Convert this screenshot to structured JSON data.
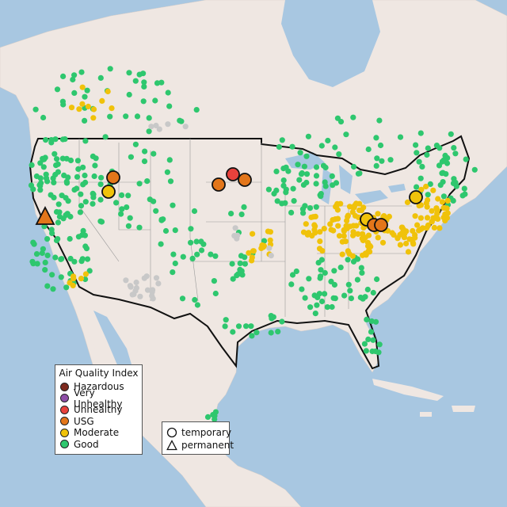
{
  "legend": {
    "title": "Air Quality Index",
    "items": [
      {
        "label": "Hazardous",
        "color": "#7e2a1e"
      },
      {
        "label": "Very Unhealthy",
        "color": "#8e4fa8"
      },
      {
        "label": "Unhealthy",
        "color": "#e8423c"
      },
      {
        "label": "USG",
        "color": "#e3761a"
      },
      {
        "label": "Moderate",
        "color": "#f0c20a"
      },
      {
        "label": "Good",
        "color": "#2ec76e"
      }
    ]
  },
  "shape_legend": {
    "temporary": "temporary",
    "permanent": "permanent"
  },
  "colors": {
    "land": "#efe7e2",
    "water": "#a8c7e1",
    "no_data": "#c8c8c8"
  }
}
